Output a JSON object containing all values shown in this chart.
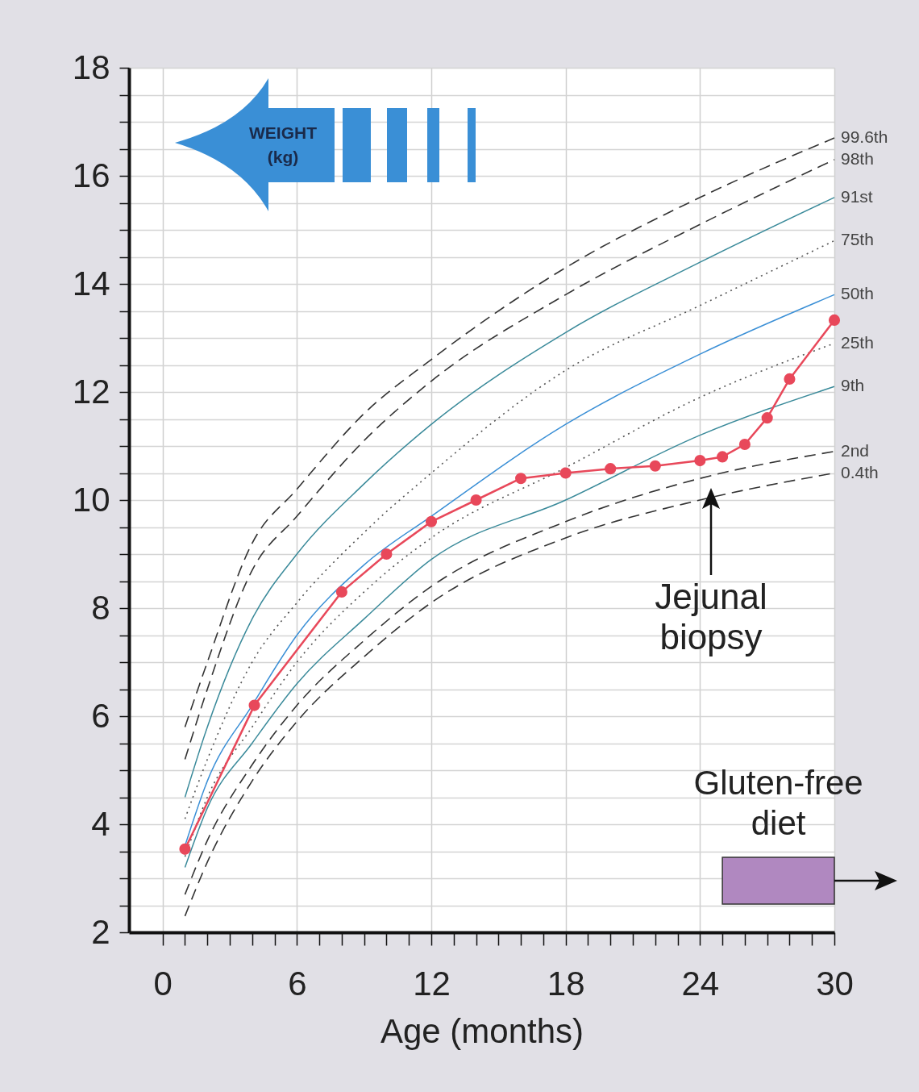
{
  "chart_data": {
    "type": "line",
    "xlabel": "Age (months)",
    "ylabel": "WEIGHT (kg)",
    "x": [
      1,
      2,
      4,
      6,
      9,
      12,
      18,
      24,
      30
    ],
    "series": [
      {
        "name": "99.6th",
        "color": "#333333",
        "line_style": "dashed",
        "values": [
          5.8,
          7.0,
          9.2,
          10.2,
          11.6,
          12.6,
          14.3,
          15.6,
          16.7
        ]
      },
      {
        "name": "98th",
        "color": "#333333",
        "line_style": "dashed",
        "values": [
          5.2,
          6.5,
          8.7,
          9.7,
          11.1,
          12.2,
          13.8,
          15.1,
          16.3
        ]
      },
      {
        "name": "91st",
        "color": "#3a8a9a",
        "line_style": "solid",
        "values": [
          4.5,
          5.8,
          7.8,
          9.0,
          10.3,
          11.4,
          13.1,
          14.4,
          15.6
        ]
      },
      {
        "name": "75th",
        "color": "#555555",
        "line_style": "dotted",
        "values": [
          4.1,
          5.2,
          7.0,
          8.1,
          9.4,
          10.5,
          12.4,
          13.6,
          14.8
        ]
      },
      {
        "name": "50th",
        "color": "#3a8fd6",
        "line_style": "solid",
        "values": [
          3.6,
          4.8,
          6.2,
          7.5,
          8.8,
          9.7,
          11.4,
          12.7,
          13.8
        ]
      },
      {
        "name": "25th",
        "color": "#555555",
        "line_style": "dotted",
        "values": [
          3.4,
          4.5,
          5.8,
          7.0,
          8.3,
          9.3,
          10.6,
          11.9,
          12.9
        ]
      },
      {
        "name": "9th",
        "color": "#3a8a9a",
        "line_style": "solid",
        "values": [
          3.2,
          4.3,
          5.5,
          6.6,
          7.8,
          8.9,
          10.0,
          11.2,
          12.1
        ]
      },
      {
        "name": "2nd",
        "color": "#333333",
        "line_style": "dashed",
        "values": [
          2.7,
          3.7,
          5.1,
          6.2,
          7.4,
          8.4,
          9.6,
          10.4,
          10.9
        ]
      },
      {
        "name": "0.4th",
        "color": "#333333",
        "line_style": "dashed",
        "values": [
          2.3,
          3.3,
          4.8,
          5.9,
          7.1,
          8.1,
          9.3,
          10.0,
          10.5
        ]
      },
      {
        "color": "#e8485a",
        "line_style": "solid",
        "marker": "circle",
        "x": [
          1,
          4.1,
          8,
          10,
          12,
          14,
          16,
          18,
          20,
          22,
          24,
          25,
          26,
          27,
          28,
          30
        ],
        "values": [
          3.54,
          6.2,
          8.3,
          9.0,
          9.6,
          10.0,
          10.4,
          10.5,
          10.58,
          10.63,
          10.73,
          10.8,
          11.03,
          11.52,
          12.24,
          13.33
        ]
      }
    ],
    "xlim": [
      -1.5,
      30
    ],
    "xticks": [
      0,
      {
        "value": 1,
        "label": null
      },
      {
        "value": 2,
        "label": null
      },
      {
        "value": 3,
        "label": null
      },
      {
        "value": 4,
        "label": null
      },
      {
        "value": 5,
        "label": null
      },
      6,
      {
        "value": 7,
        "label": null
      },
      {
        "value": 8,
        "label": null
      },
      {
        "value": 9,
        "label": null
      },
      {
        "value": 10,
        "label": null
      },
      {
        "value": 11,
        "label": null
      },
      12,
      {
        "value": 13,
        "label": null
      },
      {
        "value": 14,
        "label": null
      },
      {
        "value": 15,
        "label": null
      },
      {
        "value": 16,
        "label": null
      },
      {
        "value": 17,
        "label": null
      },
      18,
      {
        "value": 19,
        "label": null
      },
      {
        "value": 20,
        "label": null
      },
      {
        "value": 21,
        "label": null
      },
      {
        "value": 22,
        "label": null
      },
      {
        "value": 23,
        "label": null
      },
      24,
      {
        "value": 25,
        "label": null
      },
      {
        "value": 26,
        "label": null
      },
      {
        "value": 27,
        "label": null
      },
      {
        "value": 28,
        "label": null
      },
      {
        "value": 29,
        "label": null
      },
      30
    ],
    "ylim": [
      2,
      18
    ],
    "yticks": [
      2,
      {
        "value": 2.5,
        "label": null
      },
      {
        "value": 3,
        "label": null
      },
      {
        "value": 3.5,
        "label": null
      },
      4,
      {
        "value": 4.5,
        "label": null
      },
      {
        "value": 5,
        "label": null
      },
      {
        "value": 5.5,
        "label": null
      },
      6,
      {
        "value": 6.5,
        "label": null
      },
      {
        "value": 7,
        "label": null
      },
      {
        "value": 7.5,
        "label": null
      },
      8,
      {
        "value": 8.5,
        "label": null
      },
      {
        "value": 9,
        "label": null
      },
      {
        "value": 9.5,
        "label": null
      },
      10,
      {
        "value": 10.5,
        "label": null
      },
      {
        "value": 11,
        "label": null
      },
      {
        "value": 11.5,
        "label": null
      },
      12,
      {
        "value": 12.5,
        "label": null
      },
      {
        "value": 13,
        "label": null
      },
      {
        "value": 13.5,
        "label": null
      },
      14,
      {
        "value": 14.5,
        "label": null
      },
      {
        "value": 15,
        "label": null
      },
      {
        "value": 15.5,
        "label": null
      },
      16,
      {
        "value": 16.5,
        "label": null
      },
      {
        "value": 17,
        "label": null
      },
      {
        "value": 17.5,
        "label": null
      },
      18
    ],
    "grid": true,
    "annotations": [
      "Jejunal biopsy"
    ],
    "bands": [
      {
        "axis": "x",
        "from": 25,
        "to": 30,
        "label": "Gluten-free diet",
        "color": "#b088c0"
      }
    ]
  }
}
